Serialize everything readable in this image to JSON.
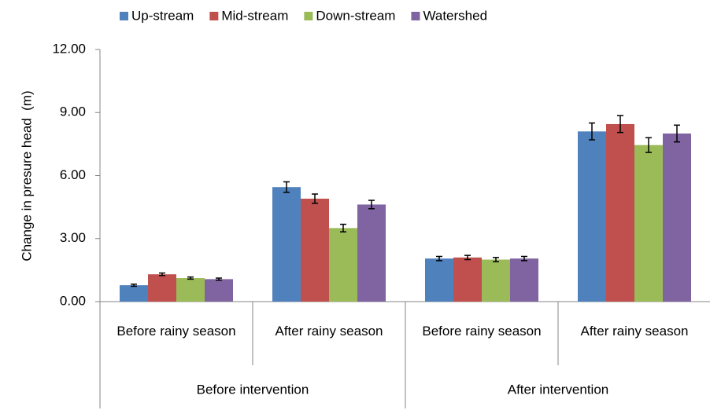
{
  "chart_data": {
    "type": "bar",
    "y_label": "Change in presure head  (m)",
    "categories": [
      "Before rainy season",
      "After rainy season",
      "Before rainy season",
      "After rainy season"
    ],
    "groups": [
      "Before intervention",
      "After intervention"
    ],
    "series": [
      {
        "name": "Up-stream",
        "color": "#4f81bd",
        "values": [
          0.78,
          5.45,
          2.05,
          8.1
        ],
        "errors": [
          0.05,
          0.25,
          0.1,
          0.4
        ]
      },
      {
        "name": "Mid-stream",
        "color": "#c0504d",
        "values": [
          1.3,
          4.9,
          2.1,
          8.45
        ],
        "errors": [
          0.06,
          0.22,
          0.1,
          0.4
        ]
      },
      {
        "name": "Down-stream",
        "color": "#9bbb59",
        "values": [
          1.12,
          3.5,
          2.0,
          7.45
        ],
        "errors": [
          0.05,
          0.18,
          0.1,
          0.35
        ]
      },
      {
        "name": "Watershed",
        "color": "#8064a2",
        "values": [
          1.07,
          4.62,
          2.05,
          8.0
        ],
        "errors": [
          0.05,
          0.2,
          0.1,
          0.4
        ]
      }
    ],
    "ylim": [
      0,
      12
    ],
    "yticks": [
      {
        "value": 0,
        "label": "0.00"
      },
      {
        "value": 3,
        "label": "3.00"
      },
      {
        "value": 6,
        "label": "6.00"
      },
      {
        "value": 9,
        "label": "9.00"
      },
      {
        "value": 12,
        "label": "12.00"
      }
    ],
    "grid": false,
    "legend": "top"
  }
}
